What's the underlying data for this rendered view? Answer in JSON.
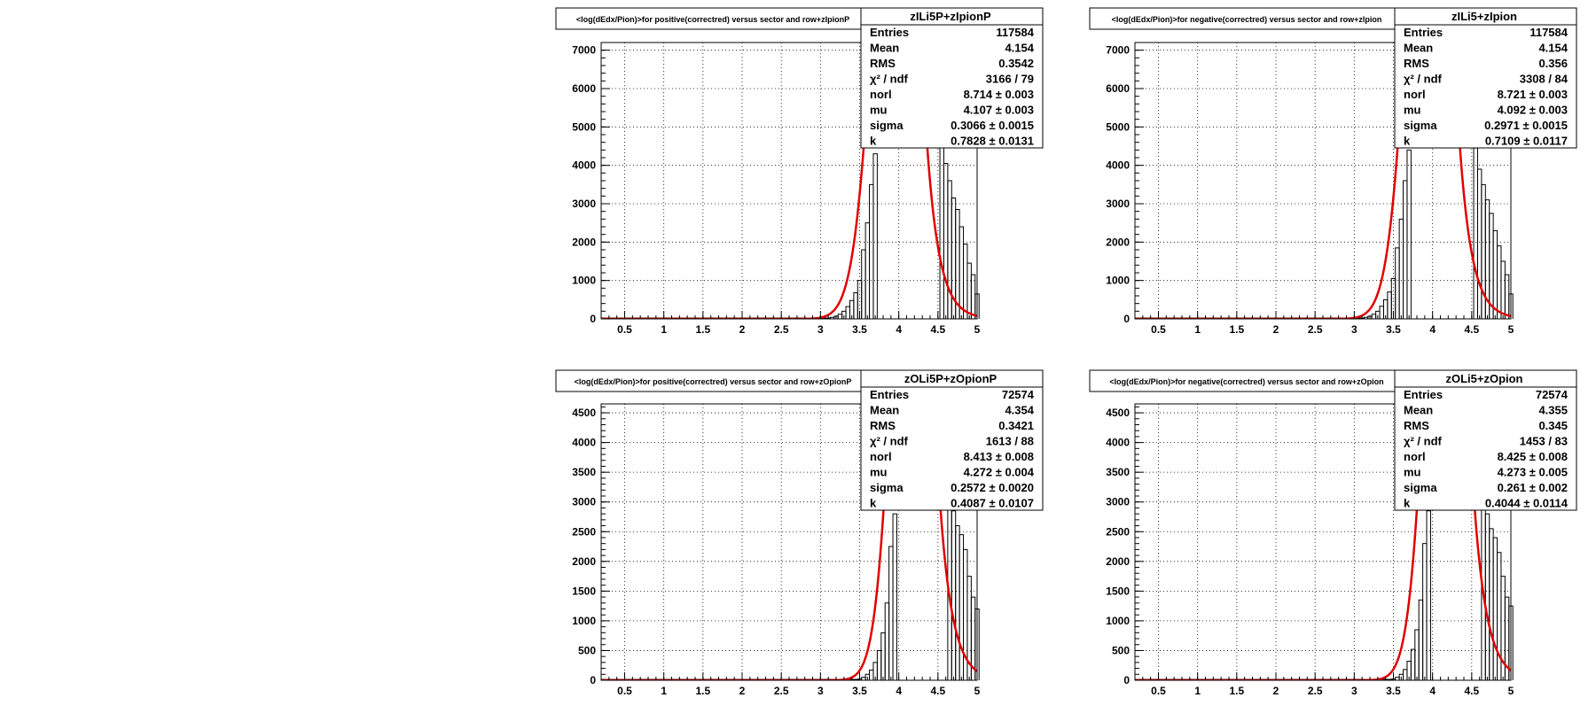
{
  "colors": {
    "fit": "#e00000",
    "hist": "#000000",
    "grid": "#000000",
    "frame": "#000000"
  },
  "chart_data": [
    {
      "type": "line",
      "title": "<log(dEdx/Pion)>for positive(correctred) versus sector and row+zIpionP",
      "hist_name": "zILi5P+zIpionP",
      "xlim": [
        0.2,
        5.0
      ],
      "ylim": [
        0,
        7200
      ],
      "x_ticks": [
        "0.5",
        "1",
        "1.5",
        "2",
        "2.5",
        "3",
        "3.5",
        "4",
        "4.5",
        "5"
      ],
      "y_ticks": [
        "0",
        "1000",
        "2000",
        "3000",
        "4000",
        "5000",
        "6000",
        "7000"
      ],
      "grid": true,
      "stats": [
        {
          "label": "Entries",
          "value": "117584"
        },
        {
          "label": "Mean",
          "value": "4.154"
        },
        {
          "label": "RMS",
          "value": "0.3542"
        },
        {
          "label": "χ² / ndf",
          "value": "3166 / 79"
        },
        {
          "label": "norl",
          "value": "8.714 ± 0.003"
        },
        {
          "label": "mu",
          "value": "4.107 ± 0.003"
        },
        {
          "label": "sigma",
          "value": "0.3066 ± 0.0015"
        },
        {
          "label": "k",
          "value": "0.7828 ± 0.0131"
        }
      ],
      "fit": {
        "mu": 4.107,
        "sigma": 0.3066,
        "k": 0.7828
      },
      "hist_x": [
        3.1,
        3.15,
        3.2,
        3.25,
        3.3,
        3.35,
        3.4,
        3.45,
        3.5,
        3.55,
        3.6,
        3.65,
        3.7,
        4.55,
        4.6,
        4.65,
        4.7,
        4.75,
        4.8,
        4.85,
        4.9,
        4.95,
        5.0
      ],
      "hist_y": [
        20,
        40,
        70,
        120,
        200,
        320,
        480,
        680,
        1000,
        1800,
        2500,
        3500,
        4300,
        4500,
        4050,
        3600,
        3150,
        2850,
        2400,
        1950,
        1450,
        1150,
        650
      ]
    },
    {
      "type": "line",
      "title": "<log(dEdx/Pion)>for negative(correctred) versus sector and row+zIpion",
      "hist_name": "zILi5+zIpion",
      "xlim": [
        0.2,
        5.0
      ],
      "ylim": [
        0,
        7200
      ],
      "x_ticks": [
        "0.5",
        "1",
        "1.5",
        "2",
        "2.5",
        "3",
        "3.5",
        "4",
        "4.5",
        "5"
      ],
      "y_ticks": [
        "0",
        "1000",
        "2000",
        "3000",
        "4000",
        "5000",
        "6000",
        "7000"
      ],
      "grid": true,
      "stats": [
        {
          "label": "Entries",
          "value": "117584"
        },
        {
          "label": "Mean",
          "value": "4.154"
        },
        {
          "label": "RMS",
          "value": "0.356"
        },
        {
          "label": "χ² / ndf",
          "value": "3308 / 84"
        },
        {
          "label": "norl",
          "value": "8.721 ± 0.003"
        },
        {
          "label": "mu",
          "value": "4.092 ± 0.003"
        },
        {
          "label": "sigma",
          "value": "0.2971 ± 0.0015"
        },
        {
          "label": "k",
          "value": "0.7109 ± 0.0117"
        }
      ],
      "fit": {
        "mu": 4.092,
        "sigma": 0.2971,
        "k": 0.7109
      },
      "hist_x": [
        3.1,
        3.15,
        3.2,
        3.25,
        3.3,
        3.35,
        3.4,
        3.45,
        3.5,
        3.55,
        3.6,
        3.65,
        3.7,
        4.55,
        4.6,
        4.65,
        4.7,
        4.75,
        4.8,
        4.85,
        4.9,
        4.95,
        5.0
      ],
      "hist_y": [
        20,
        40,
        70,
        120,
        200,
        330,
        500,
        700,
        1050,
        1850,
        2600,
        3600,
        4400,
        4450,
        3900,
        3500,
        3100,
        2750,
        2300,
        1900,
        1500,
        1150,
        650
      ]
    },
    {
      "type": "line",
      "title": "<log(dEdx/Pion)>for positive(correctred) versus sector and row+zOpionP",
      "hist_name": "zOLi5P+zOpionP",
      "xlim": [
        0.2,
        5.0
      ],
      "ylim": [
        0,
        4650
      ],
      "x_ticks": [
        "0.5",
        "1",
        "1.5",
        "2",
        "2.5",
        "3",
        "3.5",
        "4",
        "4.5",
        "5"
      ],
      "y_ticks": [
        "0",
        "500",
        "1000",
        "1500",
        "2000",
        "2500",
        "3000",
        "3500",
        "4000",
        "4500"
      ],
      "grid": true,
      "stats": [
        {
          "label": "Entries",
          "value": "72574"
        },
        {
          "label": "Mean",
          "value": "4.354"
        },
        {
          "label": "RMS",
          "value": "0.3421"
        },
        {
          "label": "χ² / ndf",
          "value": "1613 / 88"
        },
        {
          "label": "norl",
          "value": "8.413 ± 0.008"
        },
        {
          "label": "mu",
          "value": "4.272 ± 0.004"
        },
        {
          "label": "sigma",
          "value": "0.2572 ± 0.0020"
        },
        {
          "label": "k",
          "value": "0.4087 ± 0.0107"
        }
      ],
      "fit": {
        "mu": 4.272,
        "sigma": 0.2572,
        "k": 0.4087
      },
      "hist_x": [
        3.5,
        3.55,
        3.6,
        3.65,
        3.7,
        3.75,
        3.8,
        3.85,
        3.9,
        3.95,
        4.65,
        4.7,
        4.75,
        4.8,
        4.85,
        4.9,
        4.95,
        5.0
      ],
      "hist_y": [
        20,
        50,
        100,
        170,
        300,
        500,
        800,
        1300,
        2250,
        2800,
        3100,
        2850,
        2600,
        2450,
        2200,
        1750,
        1400,
        1200
      ]
    },
    {
      "type": "line",
      "title": "<log(dEdx/Pion)>for negative(correctred) versus sector and row+zOpion",
      "hist_name": "zOLi5+zOpion",
      "xlim": [
        0.2,
        5.0
      ],
      "ylim": [
        0,
        4650
      ],
      "x_ticks": [
        "0.5",
        "1",
        "1.5",
        "2",
        "2.5",
        "3",
        "3.5",
        "4",
        "4.5",
        "5"
      ],
      "y_ticks": [
        "0",
        "500",
        "1000",
        "1500",
        "2000",
        "2500",
        "3000",
        "3500",
        "4000",
        "4500"
      ],
      "grid": true,
      "stats": [
        {
          "label": "Entries",
          "value": "72574"
        },
        {
          "label": "Mean",
          "value": "4.355"
        },
        {
          "label": "RMS",
          "value": "0.345"
        },
        {
          "label": "χ² / ndf",
          "value": "1453 / 83"
        },
        {
          "label": "norl",
          "value": "8.425 ± 0.008"
        },
        {
          "label": "mu",
          "value": "4.273 ± 0.005"
        },
        {
          "label": "sigma",
          "value": "0.261 ± 0.002"
        },
        {
          "label": "k",
          "value": "0.4044 ± 0.0114"
        }
      ],
      "fit": {
        "mu": 4.273,
        "sigma": 0.261,
        "k": 0.4044
      },
      "hist_x": [
        3.5,
        3.55,
        3.6,
        3.65,
        3.7,
        3.75,
        3.8,
        3.85,
        3.9,
        3.95,
        4.65,
        4.7,
        4.75,
        4.8,
        4.85,
        4.9,
        4.95,
        5.0
      ],
      "hist_y": [
        20,
        50,
        100,
        180,
        320,
        520,
        850,
        1350,
        2300,
        2850,
        3100,
        2800,
        2550,
        2400,
        2150,
        1750,
        1400,
        1250
      ]
    }
  ]
}
